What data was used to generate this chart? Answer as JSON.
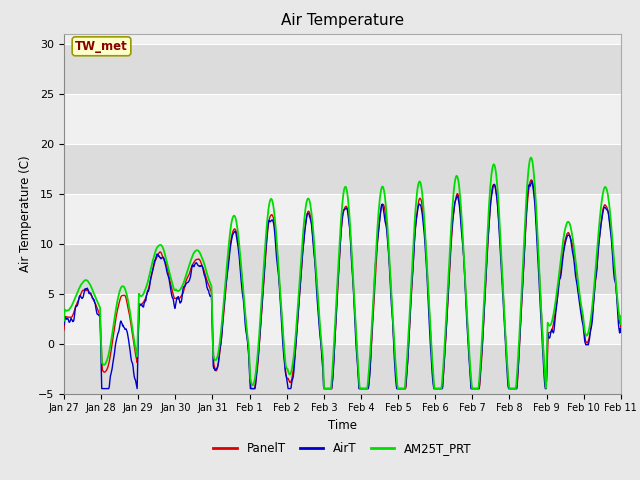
{
  "title": "Air Temperature",
  "xlabel": "Time",
  "ylabel": "Air Temperature (C)",
  "ylim": [
    -5,
    31
  ],
  "yticks": [
    -5,
    0,
    5,
    10,
    15,
    20,
    25,
    30
  ],
  "annotation_text": "TW_met",
  "annotation_color": "#8B0000",
  "annotation_bg": "#FFFFCC",
  "annotation_edge": "#999900",
  "line_colors": {
    "PanelT": "#DD0000",
    "AirT": "#0000CC",
    "AM25T_PRT": "#00DD00"
  },
  "legend_labels": [
    "PanelT",
    "AirT",
    "AM25T_PRT"
  ],
  "bg_color": "#E8E8E8",
  "plot_bg": "#F0F0F0",
  "band_color": "#DCDCDC",
  "grid_color": "#FFFFFF",
  "day_labels": [
    "Jan 27",
    "Jan 28",
    "Jan 29",
    "Jan 30",
    "Jan 31",
    "Feb 1",
    "Feb 2",
    "Feb 3",
    "Feb 4",
    "Feb 5",
    "Feb 6",
    "Feb 7",
    "Feb 8",
    "Feb 9",
    "Feb 10",
    "Feb 11"
  ],
  "n_points": 960
}
